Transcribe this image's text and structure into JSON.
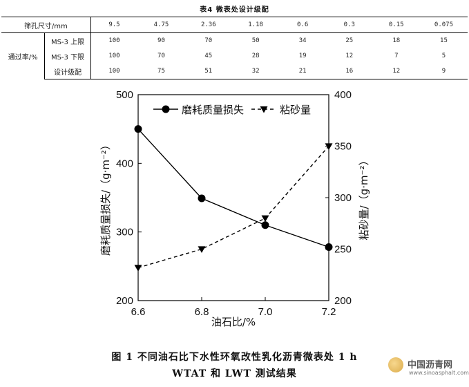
{
  "table": {
    "title": "表4   微表处设计级配",
    "header_label": "筛孔尺寸/mm",
    "sieve_sizes": [
      "9.5",
      "4.75",
      "2.36",
      "1.18",
      "0.6",
      "0.3",
      "0.15",
      "0.075"
    ],
    "group_label": "通过率/%",
    "rows": [
      {
        "label": "MS-3 上限",
        "values": [
          "100",
          "90",
          "70",
          "50",
          "34",
          "25",
          "18",
          "15"
        ]
      },
      {
        "label": "MS-3 下限",
        "values": [
          "100",
          "70",
          "45",
          "28",
          "19",
          "12",
          "7",
          "5"
        ]
      },
      {
        "label": "设计级配",
        "values": [
          "100",
          "75",
          "51",
          "32",
          "21",
          "16",
          "12",
          "9"
        ]
      }
    ]
  },
  "chart_data": {
    "type": "line",
    "x": [
      6.6,
      6.8,
      7.0,
      7.2
    ],
    "x_ticks": [
      "6.6",
      "6.8",
      "7.0",
      "7.2"
    ],
    "xlim": [
      6.6,
      7.2
    ],
    "xlabel": "油石比/%",
    "ylabel_left": "磨耗质量损失/（g·m⁻²）",
    "ylabel_right": "粘砂量/（g·m⁻²）",
    "ylim_left": [
      200,
      500
    ],
    "yticks_left": [
      200,
      300,
      400,
      500
    ],
    "ylim_right": [
      200,
      400
    ],
    "yticks_right": [
      200,
      250,
      300,
      350,
      400
    ],
    "legend_position": "top",
    "series": [
      {
        "name": "磨耗质量损失",
        "axis": "left",
        "values": [
          450,
          349,
          310,
          278
        ],
        "style": "solid",
        "marker": "circle",
        "color": "#000000"
      },
      {
        "name": "粘砂量",
        "axis": "right",
        "values": [
          232,
          250,
          280,
          350
        ],
        "style": "dashed",
        "marker": "triangle-down",
        "color": "#000000"
      }
    ]
  },
  "caption": {
    "line1": "图 1   不同油石比下水性环氧改性乳化沥青微表处 1 h",
    "line2": "WTAT 和 LWT 测试结果"
  },
  "watermark": {
    "name": "中国沥青网",
    "url": "www.sinoasphalt.com"
  }
}
